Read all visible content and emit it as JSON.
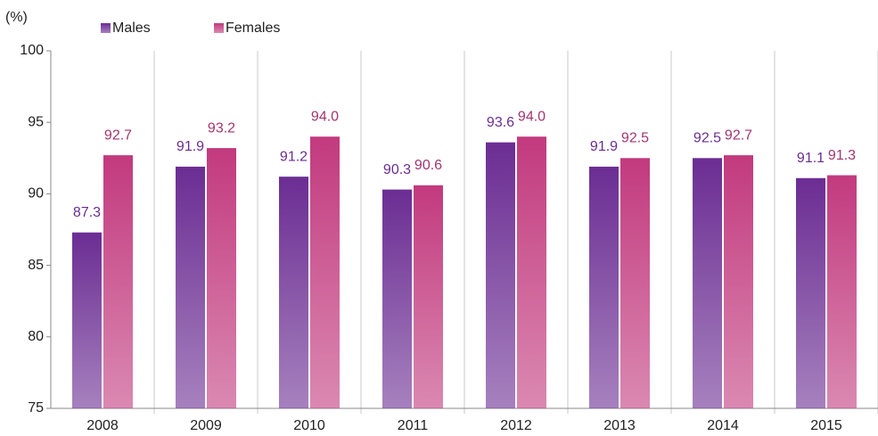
{
  "chart_data": {
    "type": "bar",
    "y_label": "(%)",
    "categories": [
      "2008",
      "2009",
      "2010",
      "2011",
      "2012",
      "2013",
      "2014",
      "2015"
    ],
    "series": [
      {
        "name": "Males",
        "color": "#6b2d93",
        "values": [
          87.3,
          91.9,
          91.2,
          90.3,
          93.6,
          91.9,
          92.5,
          91.1
        ],
        "value_labels": [
          "87.3",
          "91.9",
          "91.2",
          "90.3",
          "93.6",
          "91.9",
          "92.5",
          "91.1"
        ],
        "label_color": "#6b2d93"
      },
      {
        "name": "Females",
        "color": "#c23a7e",
        "values": [
          92.7,
          93.2,
          94.0,
          90.6,
          94.0,
          92.5,
          92.7,
          91.3
        ],
        "value_labels": [
          "92.7",
          "93.2",
          "94.0",
          "90.6",
          "94.0",
          "92.5",
          "92.7",
          "91.3"
        ],
        "label_color": "#a3346f"
      }
    ],
    "ylim": [
      75,
      100
    ],
    "yticks": [
      75,
      80,
      85,
      90,
      95,
      100
    ],
    "legend": "top-left"
  }
}
